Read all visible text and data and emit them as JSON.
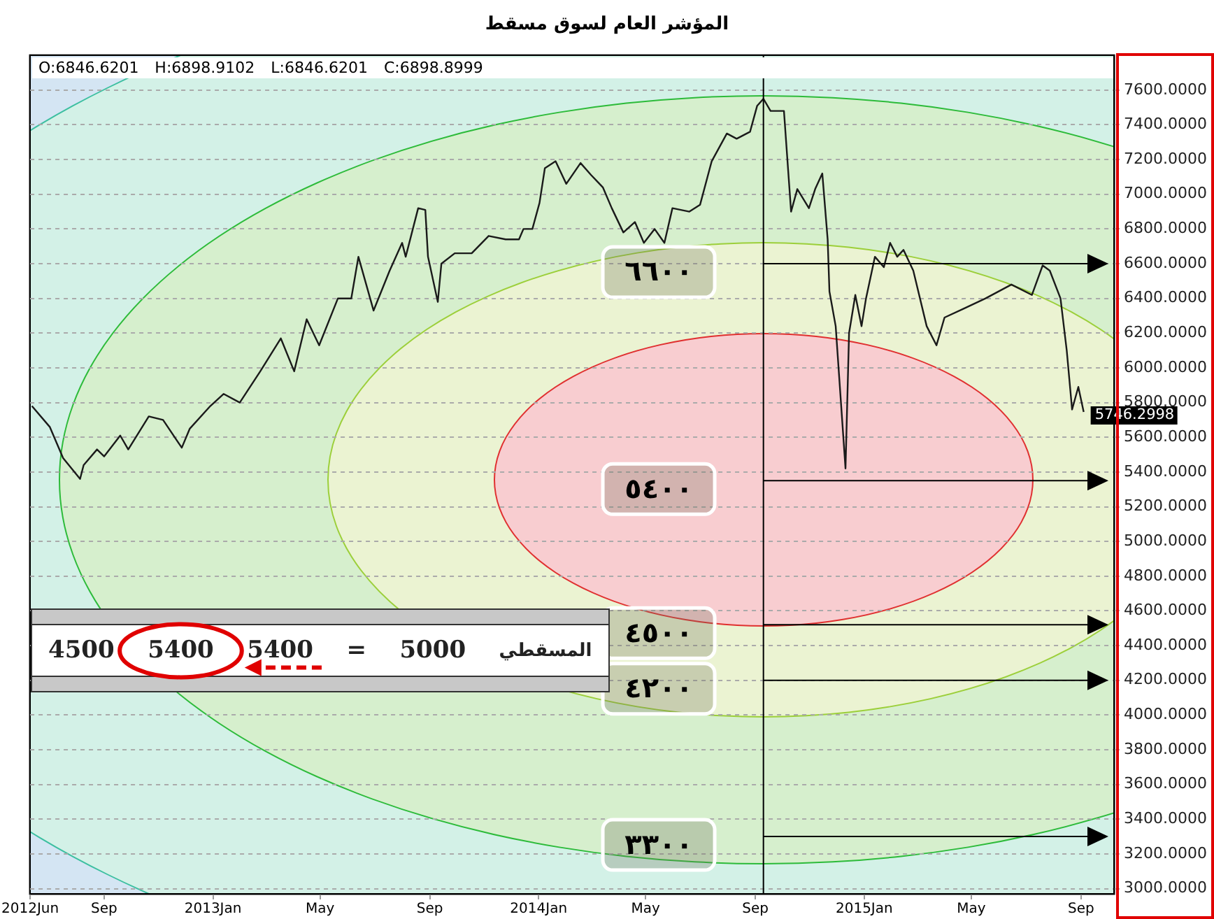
{
  "chart_data": {
    "type": "line",
    "title": "المؤشر العام لسوق مسقط",
    "annotations": [
      "O:6846.6201 H:6898.9102 L:6846.6201 C:6898.8999",
      "المسقطي",
      "5000",
      "=",
      "5400",
      "5400",
      "4500"
    ],
    "x": [
      "2012-06-12",
      "2012-07-02",
      "2012-07-17",
      "2012-08-05",
      "2012-08-09",
      "2012-08-24",
      "2012-09-01",
      "2012-09-19",
      "2012-09-28",
      "2012-10-21",
      "2012-11-06",
      "2012-11-27",
      "2012-12-06",
      "2012-12-29",
      "2013-01-13",
      "2013-01-31",
      "2013-02-23",
      "2013-03-18",
      "2013-04-02",
      "2013-04-16",
      "2013-04-30",
      "2013-05-21",
      "2013-06-05",
      "2013-06-13",
      "2013-06-30",
      "2013-07-18",
      "2013-08-01",
      "2013-08-05",
      "2013-08-19",
      "2013-08-27",
      "2013-08-30",
      "2013-09-10",
      "2013-09-14",
      "2013-09-29",
      "2013-10-18",
      "2013-11-06",
      "2013-11-25",
      "2013-12-10",
      "2013-12-15",
      "2013-12-25",
      "2014-01-02",
      "2014-01-08",
      "2014-01-20",
      "2014-02-01",
      "2014-02-17",
      "2014-03-01",
      "2014-03-14",
      "2014-03-24",
      "2014-04-06",
      "2014-04-19",
      "2014-04-29",
      "2014-05-11",
      "2014-05-22",
      "2014-05-31",
      "2014-06-19",
      "2014-07-01",
      "2014-07-14",
      "2014-07-31",
      "2014-08-11",
      "2014-08-26",
      "2014-09-03",
      "2014-09-10",
      "2014-09-18",
      "2014-10-03",
      "2014-10-11",
      "2014-10-18",
      "2014-10-31",
      "2014-11-07",
      "2014-11-15",
      "2014-11-21",
      "2014-11-23",
      "2014-11-30",
      "2014-12-11",
      "2014-12-15",
      "2014-12-22",
      "2014-12-29",
      "2015-01-03",
      "2015-01-13",
      "2015-01-23",
      "2015-01-30",
      "2015-02-07",
      "2015-02-14",
      "2015-02-25",
      "2015-03-12",
      "2015-03-23",
      "2015-04-01",
      "2015-04-22",
      "2015-05-17",
      "2015-06-15",
      "2015-07-08",
      "2015-07-20",
      "2015-07-28",
      "2015-08-09",
      "2015-08-16",
      "2015-08-22",
      "2015-08-29",
      "2015-09-04"
    ],
    "series": [
      {
        "color": "#1a1a1a",
        "values": [
          5780,
          5660,
          5480,
          5360,
          5440,
          5530,
          5490,
          5610,
          5530,
          5720,
          5700,
          5540,
          5650,
          5780,
          5850,
          5800,
          5980,
          6170,
          5980,
          6280,
          6130,
          6400,
          6400,
          6640,
          6330,
          6560,
          6720,
          6640,
          6920,
          6910,
          6640,
          6380,
          6600,
          6660,
          6660,
          6760,
          6740,
          6740,
          6800,
          6800,
          6950,
          7150,
          7190,
          7060,
          7180,
          7110,
          7040,
          6920,
          6780,
          6840,
          6720,
          6800,
          6720,
          6920,
          6900,
          6940,
          7190,
          7350,
          7320,
          7360,
          7510,
          7550,
          7480,
          7480,
          6900,
          7030,
          6920,
          7030,
          7120,
          6740,
          6440,
          6240,
          5420,
          6200,
          6420,
          6240,
          6400,
          6640,
          6580,
          6720,
          6640,
          6680,
          6560,
          6240,
          6130,
          6290,
          6340,
          6400,
          6480,
          6420,
          6590,
          6560,
          6400,
          6100,
          5760,
          5890,
          5746.2998
        ],
        "value_labels": [
          null,
          null,
          null,
          null,
          null,
          null,
          null,
          null,
          null,
          null,
          null,
          null,
          null,
          null,
          null,
          null,
          null,
          null,
          null,
          null,
          null,
          null,
          null,
          null,
          null,
          null,
          null,
          null,
          null,
          null,
          null,
          null,
          null,
          null,
          null,
          null,
          null,
          null,
          null,
          null,
          null,
          null,
          null,
          null,
          null,
          null,
          null,
          null,
          null,
          null,
          null,
          null,
          null,
          null,
          null,
          null,
          null,
          null,
          null,
          null,
          null,
          null,
          null,
          null,
          null,
          null,
          null,
          null,
          null,
          null,
          null,
          null,
          null,
          null,
          null,
          null,
          null,
          null,
          null,
          null,
          null,
          null,
          null,
          null,
          null,
          null,
          null,
          null,
          null,
          null,
          null,
          null,
          null,
          null,
          null,
          null,
          "5746.2998"
        ]
      }
    ],
    "xlim": [
      "2012-06-10",
      "2015-10-08"
    ],
    "xticks": [
      {
        "value": "2012-06-10",
        "label": "2012Jun"
      },
      {
        "value": "2012-09-01",
        "label": "Sep"
      },
      {
        "value": "2013-01-01",
        "label": "2013Jan"
      },
      {
        "value": "2013-05-01",
        "label": "May"
      },
      {
        "value": "2013-09-01",
        "label": "Sep"
      },
      {
        "value": "2014-01-01",
        "label": "2014Jan"
      },
      {
        "value": "2014-05-01",
        "label": "May"
      },
      {
        "value": "2014-09-01",
        "label": "Sep"
      },
      {
        "value": "2015-01-01",
        "label": "2015Jan"
      },
      {
        "value": "2015-05-01",
        "label": "May"
      },
      {
        "value": "2015-09-01",
        "label": "Sep"
      }
    ],
    "ylim": [
      2970,
      7800
    ],
    "yticks": [
      {
        "value": 3000,
        "label": "3000.0000"
      },
      {
        "value": 3200,
        "label": "3200.0000"
      },
      {
        "value": 3400,
        "label": "3400.0000"
      },
      {
        "value": 3600,
        "label": "3600.0000"
      },
      {
        "value": 3800,
        "label": "3800.0000"
      },
      {
        "value": 4000,
        "label": "4000.0000"
      },
      {
        "value": 4200,
        "label": "4200.0000"
      },
      {
        "value": 4400,
        "label": "4400.0000"
      },
      {
        "value": 4600,
        "label": "4600.0000"
      },
      {
        "value": 4800,
        "label": "4800.0000"
      },
      {
        "value": 5000,
        "label": "5000.0000"
      },
      {
        "value": 5200,
        "label": "5200.0000"
      },
      {
        "value": 5400,
        "label": "5400.0000"
      },
      {
        "value": 5600,
        "label": "5600.0000"
      },
      {
        "value": 5800,
        "label": "5800.0000"
      },
      {
        "value": 6000,
        "label": "6000.0000"
      },
      {
        "value": 6200,
        "label": "6200.0000"
      },
      {
        "value": 6400,
        "label": "6400.0000"
      },
      {
        "value": 6600,
        "label": "6600.0000"
      },
      {
        "value": 6800,
        "label": "6800.0000"
      },
      {
        "value": 7000,
        "label": "7000.0000"
      },
      {
        "value": 7200,
        "label": "7200.0000"
      },
      {
        "value": 7400,
        "label": "7400.0000"
      },
      {
        "value": 7600,
        "label": "7600.0000"
      }
    ],
    "ref_lines": [
      {
        "axis": "y",
        "value": 6600,
        "label": "٦٦٠٠"
      },
      {
        "axis": "y",
        "value": 5350,
        "label": "٥٤٠٠"
      },
      {
        "axis": "y",
        "value": 4520,
        "label": "٤٥٠٠"
      },
      {
        "axis": "y",
        "value": 4200,
        "label": "٤٢٠٠"
      },
      {
        "axis": "y",
        "value": 3300,
        "label": "٣٣٠٠"
      },
      {
        "axis": "x",
        "value": "2014-09-10"
      }
    ],
    "grid": "y",
    "legend": false,
    "marker": "none",
    "line_style": "solid"
  }
}
